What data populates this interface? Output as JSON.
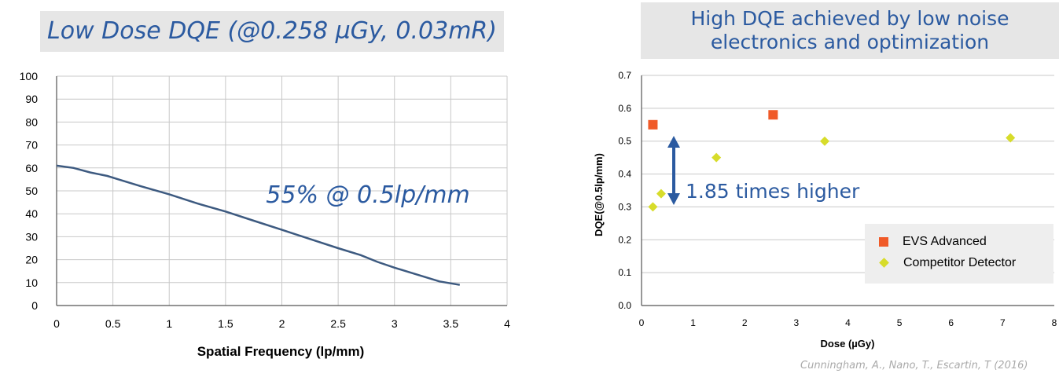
{
  "left_chart": {
    "title": "Low Dose DQE (@0.258 µGy, 0.03mR)",
    "annotation": "55% @ 0.5lp/mm",
    "chart_data": {
      "type": "line",
      "title": "Low Dose DQE (@0.258 µGy, 0.03mR)",
      "xlabel": "Spatial Frequency (lp/mm)",
      "ylabel": "",
      "xlim": [
        0,
        4
      ],
      "ylim": [
        0,
        100
      ],
      "x_ticks": [
        "0",
        "0.5",
        "1",
        "1.5",
        "2",
        "2.5",
        "3",
        "3.5",
        "4"
      ],
      "y_ticks": [
        "0",
        "10",
        "20",
        "30",
        "40",
        "50",
        "60",
        "70",
        "80",
        "90",
        "100"
      ],
      "grid": true,
      "series": [
        {
          "x": [
            0,
            0.15,
            0.3,
            0.45,
            0.55,
            0.75,
            1.0,
            1.25,
            1.5,
            1.75,
            2.0,
            2.25,
            2.5,
            2.7,
            2.85,
            3.0,
            3.2,
            3.4,
            3.58
          ],
          "y": [
            61,
            60,
            58,
            56.5,
            55,
            52,
            48.5,
            44.5,
            41,
            37,
            33,
            29,
            25,
            22,
            19,
            16.5,
            13.5,
            10.5,
            9
          ],
          "color": "#3d5a80"
        }
      ]
    }
  },
  "right_chart": {
    "title": "High DQE achieved by low noise electronics and optimization",
    "annotation": "1.85 times higher",
    "legend": [
      "EVS Advanced",
      "Competitor Detector"
    ],
    "citation": "Cunningham, A., Nano, T., Escartin, T (2016)",
    "chart_data": {
      "type": "scatter",
      "title": "High DQE achieved by low noise electronics and optimization",
      "xlabel": "Dose (µGy)",
      "ylabel": "DQE(@0.5lp/mm)",
      "xlim": [
        0,
        8
      ],
      "ylim": [
        0,
        0.7
      ],
      "x_ticks": [
        "0",
        "1",
        "2",
        "3",
        "4",
        "5",
        "6",
        "7",
        "8"
      ],
      "y_ticks": [
        "0.0",
        "0.1",
        "0.2",
        "0.3",
        "0.4",
        "0.5",
        "0.6",
        "0.7"
      ],
      "grid": true,
      "legend_position": "bottom-right",
      "series": [
        {
          "name": "EVS Advanced",
          "marker": "square",
          "color": "#f05a28",
          "x": [
            0.22,
            2.55
          ],
          "y": [
            0.55,
            0.58
          ]
        },
        {
          "name": "Competitor Detector",
          "marker": "diamond",
          "color": "#d7dc2a",
          "x": [
            0.22,
            0.38,
            1.45,
            3.55,
            7.15
          ],
          "y": [
            0.3,
            0.34,
            0.45,
            0.5,
            0.51
          ]
        }
      ]
    }
  }
}
